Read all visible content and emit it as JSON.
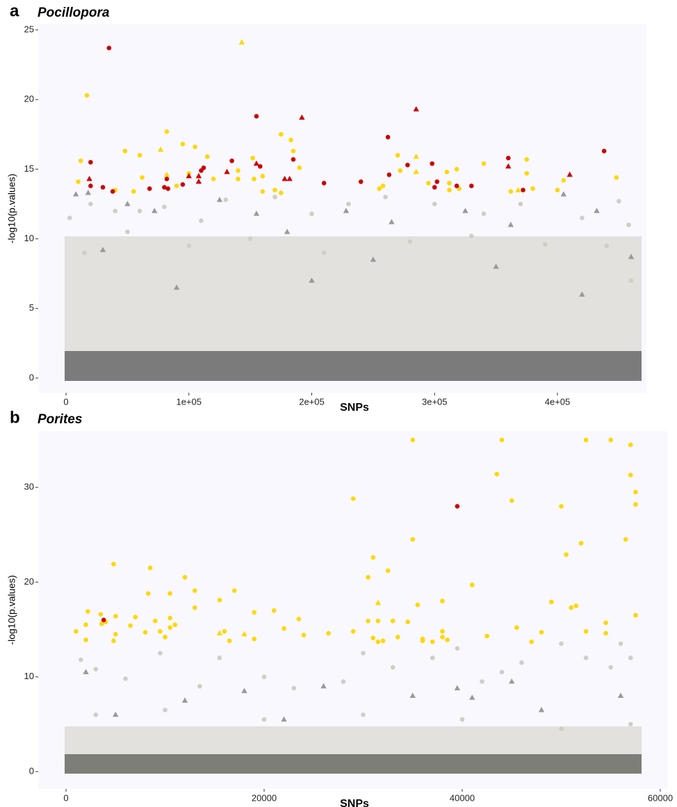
{
  "chart_data": [
    {
      "type": "scatter",
      "panel": "a",
      "title": "Pocillopora",
      "xlabel": "SNPs",
      "ylabel": "-log10(p.values)",
      "xlim": [
        -22631,
        472418
      ],
      "ylim": [
        -1.05,
        25.4
      ],
      "xticks": [
        0,
        {
          "value": 100000,
          "label": "1e+05"
        },
        {
          "value": 200000,
          "label": "2e+05"
        },
        {
          "value": 300000,
          "label": "3e+05"
        },
        {
          "value": 400000,
          "label": "4e+05"
        }
      ],
      "yticks": [
        0,
        5,
        10,
        15,
        20,
        25
      ],
      "series": [
        {
          "color": "#cfcfc2",
          "marker": "circle",
          "x": [
            3000,
            20000,
            40000,
            60000,
            80000,
            110000,
            130000,
            170000,
            200000,
            230000,
            260000,
            300000,
            340000,
            370000,
            420000,
            450000,
            458000,
            15000,
            50000,
            100000,
            150000,
            210000,
            280000,
            330000,
            390000,
            440000,
            460000
          ],
          "values": [
            11.5,
            12.5,
            12.0,
            12.0,
            12.3,
            11.3,
            12.8,
            13.0,
            11.8,
            12.5,
            13.0,
            12.5,
            11.8,
            12.5,
            11.5,
            12.7,
            11.0,
            9.0,
            10.5,
            9.5,
            10.0,
            9.0,
            9.8,
            10.2,
            9.6,
            9.5,
            7.0
          ]
        },
        {
          "color": "#999999",
          "marker": "triangle",
          "x": [
            8000,
            18000,
            50000,
            72000,
            125000,
            155000,
            228000,
            265000,
            325000,
            362000,
            405000,
            432000,
            460000,
            180000,
            30000,
            90000,
            200000,
            250000,
            350000,
            420000
          ],
          "values": [
            13.2,
            13.3,
            12.5,
            12.0,
            12.8,
            11.8,
            12.0,
            11.2,
            12.0,
            11.0,
            13.2,
            12.0,
            8.7,
            10.5,
            9.2,
            6.5,
            7.0,
            8.5,
            8.0,
            6.0
          ]
        },
        {
          "color": "#ffd700",
          "marker": "circle",
          "x": [
            17000,
            12000,
            10000,
            40000,
            48000,
            55000,
            60000,
            62000,
            82000,
            90000,
            95000,
            100000,
            105000,
            115000,
            120000,
            140000,
            140000,
            152000,
            153000,
            160000,
            160000,
            170000,
            175000,
            175000,
            183000,
            185000,
            190000,
            255000,
            258000,
            270000,
            272000,
            295000,
            310000,
            312000,
            312000,
            318000,
            320000,
            340000,
            362000,
            375000,
            375000,
            380000,
            400000,
            405000,
            448000
          ],
          "values": [
            20.3,
            15.6,
            14.1,
            13.5,
            16.3,
            13.4,
            16.0,
            14.4,
            17.7,
            13.8,
            16.8,
            14.7,
            16.6,
            15.9,
            14.3,
            14.9,
            14.3,
            15.8,
            14.3,
            14.5,
            13.4,
            13.5,
            17.5,
            13.3,
            17.1,
            16.3,
            15.1,
            13.6,
            13.8,
            16.0,
            14.9,
            14.0,
            14.8,
            14.0,
            13.5,
            15.0,
            13.6,
            15.4,
            13.4,
            15.7,
            14.7,
            13.6,
            13.5,
            14.2,
            14.4
          ]
        },
        {
          "color": "#ffd700",
          "marker": "triangle",
          "x": [
            143000,
            77000,
            82000,
            285000,
            285000,
            368000
          ],
          "values": [
            24.1,
            16.4,
            14.6,
            15.9,
            14.8,
            13.5
          ]
        },
        {
          "color": "#cc0000",
          "marker": "circle",
          "x": [
            35000,
            20000,
            20000,
            30000,
            38000,
            68000,
            80000,
            82000,
            83000,
            95000,
            110000,
            112000,
            135000,
            155000,
            158000,
            185000,
            210000,
            240000,
            262000,
            263000,
            278000,
            298000,
            300000,
            302000,
            318000,
            360000,
            372000,
            330000,
            438000
          ],
          "values": [
            23.7,
            15.5,
            13.8,
            13.7,
            13.4,
            13.6,
            13.7,
            14.3,
            13.6,
            13.9,
            14.9,
            15.1,
            15.6,
            18.8,
            15.2,
            15.7,
            14.0,
            14.1,
            17.3,
            14.6,
            15.3,
            15.4,
            13.7,
            14.1,
            13.8,
            15.8,
            13.5,
            13.8,
            16.3
          ]
        },
        {
          "color": "#cc0000",
          "marker": "triangle",
          "x": [
            19000,
            100000,
            108000,
            108000,
            131000,
            155000,
            178000,
            182000,
            192000,
            285000,
            360000,
            410000
          ],
          "values": [
            14.3,
            14.5,
            14.5,
            14.1,
            14.8,
            15.4,
            14.3,
            14.3,
            18.7,
            19.3,
            15.2,
            14.6
          ]
        }
      ]
    },
    {
      "type": "scatter",
      "panel": "b",
      "title": "Porites",
      "xlabel": "SNPs",
      "ylabel": "-log10(p.values)",
      "xlim": [
        -2807,
        60702
      ],
      "ylim": [
        -1.83,
        35.95
      ],
      "xticks": [
        0,
        20000,
        40000,
        60000
      ],
      "yticks": [
        0,
        10,
        20,
        30
      ],
      "series": [
        {
          "color": "#cfcfc2",
          "marker": "circle",
          "x": [
            1500,
            3000,
            6000,
            9500,
            13500,
            15500,
            20000,
            23000,
            28000,
            30000,
            33000,
            37000,
            39500,
            42000,
            44000,
            46000,
            50000,
            52500,
            55000,
            56000,
            57000,
            3000,
            10000,
            20000,
            30000,
            40000,
            50000,
            57000
          ],
          "values": [
            11.8,
            10.8,
            9.8,
            12.5,
            9.0,
            12.0,
            10.0,
            8.8,
            9.5,
            12.5,
            11.0,
            12.0,
            13.0,
            9.5,
            10.5,
            11.5,
            13.5,
            12.0,
            11.0,
            13.5,
            12.0,
            6,
            6.5,
            5.5,
            6.0,
            5.5,
            4.5,
            5.0
          ]
        },
        {
          "color": "#999999",
          "marker": "triangle",
          "x": [
            2000,
            12000,
            18000,
            26000,
            35000,
            39500,
            41000,
            45000,
            48000,
            56000,
            5000,
            22000
          ],
          "values": [
            10.5,
            7.5,
            8.5,
            9.0,
            8.0,
            8.8,
            7.8,
            9.5,
            6.5,
            8.0,
            6.0,
            5.5
          ]
        },
        {
          "color": "#ffd700",
          "marker": "circle",
          "x": [
            1000,
            2000,
            2200,
            2000,
            3500,
            3600,
            4000,
            4800,
            5000,
            4800,
            5000,
            6500,
            7000,
            8000,
            8500,
            8300,
            9000,
            9500,
            10000,
            10500,
            10500,
            11000,
            10500,
            12000,
            13000,
            13000,
            15500,
            16000,
            16500,
            19000,
            19000,
            17000,
            21000,
            22000,
            23500,
            24000,
            26500,
            29000,
            29000,
            30500,
            31000,
            30500,
            31000,
            31500,
            31500,
            32000,
            32500,
            33000,
            33500,
            34500,
            35000,
            35000,
            35500,
            36000,
            36000,
            37000,
            38000,
            38000,
            38000,
            38500,
            41000,
            42500,
            43500,
            44000,
            45000,
            45500,
            47000,
            48000,
            49000,
            50000,
            50500,
            51000,
            51500,
            52000,
            52500,
            52500,
            54500,
            54500,
            55000,
            56500,
            57000,
            57000,
            57500,
            57500,
            57500
          ],
          "values": [
            14.8,
            15.5,
            16.9,
            13.9,
            16.6,
            15.6,
            15.8,
            21.9,
            16.4,
            13.8,
            14.5,
            15.4,
            16.3,
            14.7,
            21.5,
            18.8,
            15.9,
            14.8,
            14.2,
            16.2,
            18.8,
            15.5,
            15.2,
            20.5,
            19.1,
            17.3,
            18.1,
            14.8,
            13.8,
            16.8,
            14.0,
            19.1,
            17.0,
            15.1,
            16.1,
            14.4,
            14.6,
            28.8,
            14.8,
            20.5,
            22.6,
            15.9,
            14.1,
            13.7,
            15.9,
            13.8,
            21.2,
            15.9,
            14.2,
            15.8,
            24.5,
            35.0,
            17.6,
            14.0,
            13.8,
            13.7,
            18.0,
            14.8,
            14.2,
            13.9,
            19.7,
            14.3,
            31.4,
            35.0,
            28.6,
            15.2,
            13.7,
            14.7,
            17.9,
            28.0,
            22.9,
            17.3,
            17.5,
            24.1,
            14.8,
            35.0,
            15.7,
            14.6,
            35.0,
            24.5,
            34.5,
            31.3,
            29.5,
            28.2,
            16.5
          ]
        },
        {
          "color": "#ffd700",
          "marker": "triangle",
          "x": [
            15500,
            18000,
            31500
          ],
          "values": [
            14.6,
            14.5,
            17.8
          ]
        },
        {
          "color": "#cc0000",
          "marker": "circle",
          "x": [
            3800,
            39500
          ],
          "values": [
            16.0,
            28.0
          ]
        }
      ]
    }
  ]
}
